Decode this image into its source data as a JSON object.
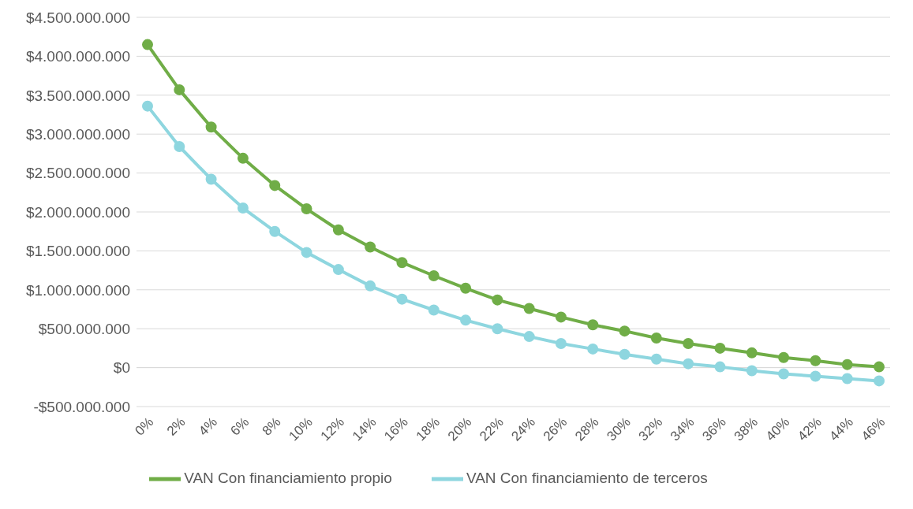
{
  "chart_data": {
    "type": "line",
    "categories": [
      "0%",
      "2%",
      "4%",
      "6%",
      "8%",
      "10%",
      "12%",
      "14%",
      "16%",
      "18%",
      "20%",
      "22%",
      "24%",
      "26%",
      "28%",
      "30%",
      "32%",
      "34%",
      "36%",
      "38%",
      "40%",
      "42%",
      "44%",
      "46%"
    ],
    "series": [
      {
        "name": "VAN Con financiamiento propio",
        "color": "#70ad47",
        "values": [
          4150000000,
          3570000000,
          3090000000,
          2690000000,
          2340000000,
          2040000000,
          1770000000,
          1550000000,
          1350000000,
          1180000000,
          1020000000,
          870000000,
          760000000,
          650000000,
          550000000,
          470000000,
          380000000,
          310000000,
          250000000,
          190000000,
          130000000,
          90000000,
          40000000,
          10000000
        ]
      },
      {
        "name": "VAN Con financiamiento de terceros",
        "color": "#8ed6df",
        "values": [
          3360000000,
          2840000000,
          2420000000,
          2050000000,
          1750000000,
          1480000000,
          1260000000,
          1050000000,
          880000000,
          740000000,
          610000000,
          500000000,
          400000000,
          310000000,
          240000000,
          170000000,
          110000000,
          50000000,
          10000000,
          -40000000,
          -80000000,
          -110000000,
          -140000000,
          -170000000
        ]
      }
    ],
    "ylim": [
      -500000000,
      4500000000
    ],
    "yticks": [
      {
        "value": -500000000,
        "label": "-$500.000.000"
      },
      {
        "value": 0,
        "label": "$0"
      },
      {
        "value": 500000000,
        "label": "$500.000.000"
      },
      {
        "value": 1000000000,
        "label": "$1.000.000.000"
      },
      {
        "value": 1500000000,
        "label": "$1.500.000.000"
      },
      {
        "value": 2000000000,
        "label": "$2.000.000.000"
      },
      {
        "value": 2500000000,
        "label": "$2.500.000.000"
      },
      {
        "value": 3000000000,
        "label": "$3.000.000.000"
      },
      {
        "value": 3500000000,
        "label": "$3.500.000.000"
      },
      {
        "value": 4000000000,
        "label": "$4.000.000.000"
      },
      {
        "value": 4500000000,
        "label": "$4.500.000.000"
      }
    ],
    "grid": "y",
    "legend": "bottom",
    "marker": "circle",
    "line_style": "solid"
  }
}
